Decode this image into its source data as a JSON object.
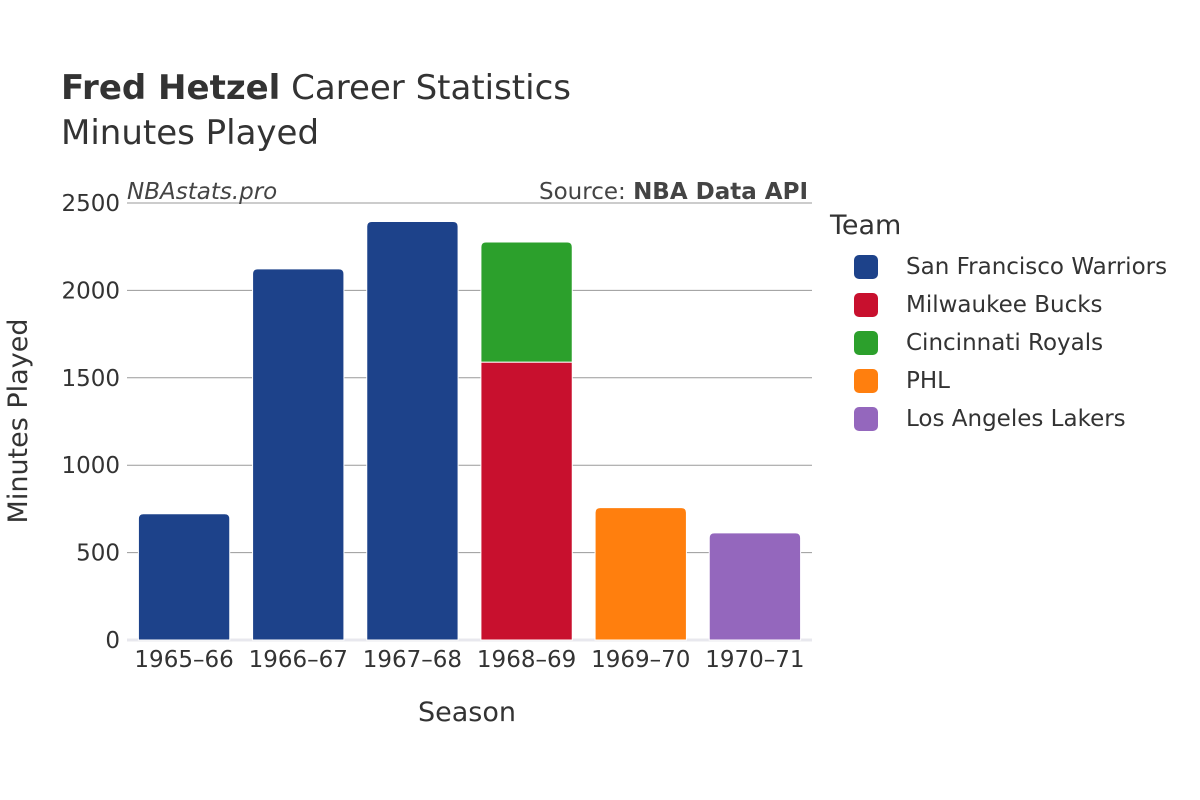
{
  "header": {
    "player_name": "Fred Hetzel",
    "title_suffix": "Career Statistics",
    "subtitle": "Minutes Played"
  },
  "watermark": "NBAstats.pro",
  "source": {
    "prefix": "Source: ",
    "name": "NBA Data API"
  },
  "legend": {
    "title": "Team",
    "items": [
      {
        "label": "San Francisco Warriors",
        "color": "#1d428a"
      },
      {
        "label": "Milwaukee Bucks",
        "color": "#c8102e"
      },
      {
        "label": "Cincinnati Royals",
        "color": "#2ca02c"
      },
      {
        "label": "PHL",
        "color": "#ff7f0e"
      },
      {
        "label": "Los Angeles Lakers",
        "color": "#9467bd"
      }
    ]
  },
  "chart_data": {
    "type": "bar",
    "stacked": true,
    "categories": [
      "1965–66",
      "1966–67",
      "1967–68",
      "1968–69",
      "1969–70",
      "1970–71"
    ],
    "xlabel": "Season",
    "ylabel": "Minutes Played",
    "ylim": [
      0,
      2500
    ],
    "yticks": [
      0,
      500,
      1000,
      1500,
      2000,
      2500
    ],
    "grid": true,
    "legend_position": "right",
    "series": [
      {
        "name": "San Francisco Warriors",
        "color": "#1d428a",
        "values": [
          722,
          2123,
          2394,
          0,
          0,
          0
        ]
      },
      {
        "name": "Milwaukee Bucks",
        "color": "#c8102e",
        "values": [
          0,
          0,
          0,
          1590,
          0,
          0
        ]
      },
      {
        "name": "Cincinnati Royals",
        "color": "#2ca02c",
        "values": [
          0,
          0,
          0,
          687,
          0,
          0
        ]
      },
      {
        "name": "PHL",
        "color": "#ff7f0e",
        "values": [
          0,
          0,
          0,
          0,
          757,
          0
        ]
      },
      {
        "name": "Los Angeles Lakers",
        "color": "#9467bd",
        "values": [
          0,
          0,
          0,
          0,
          0,
          613
        ]
      }
    ]
  }
}
